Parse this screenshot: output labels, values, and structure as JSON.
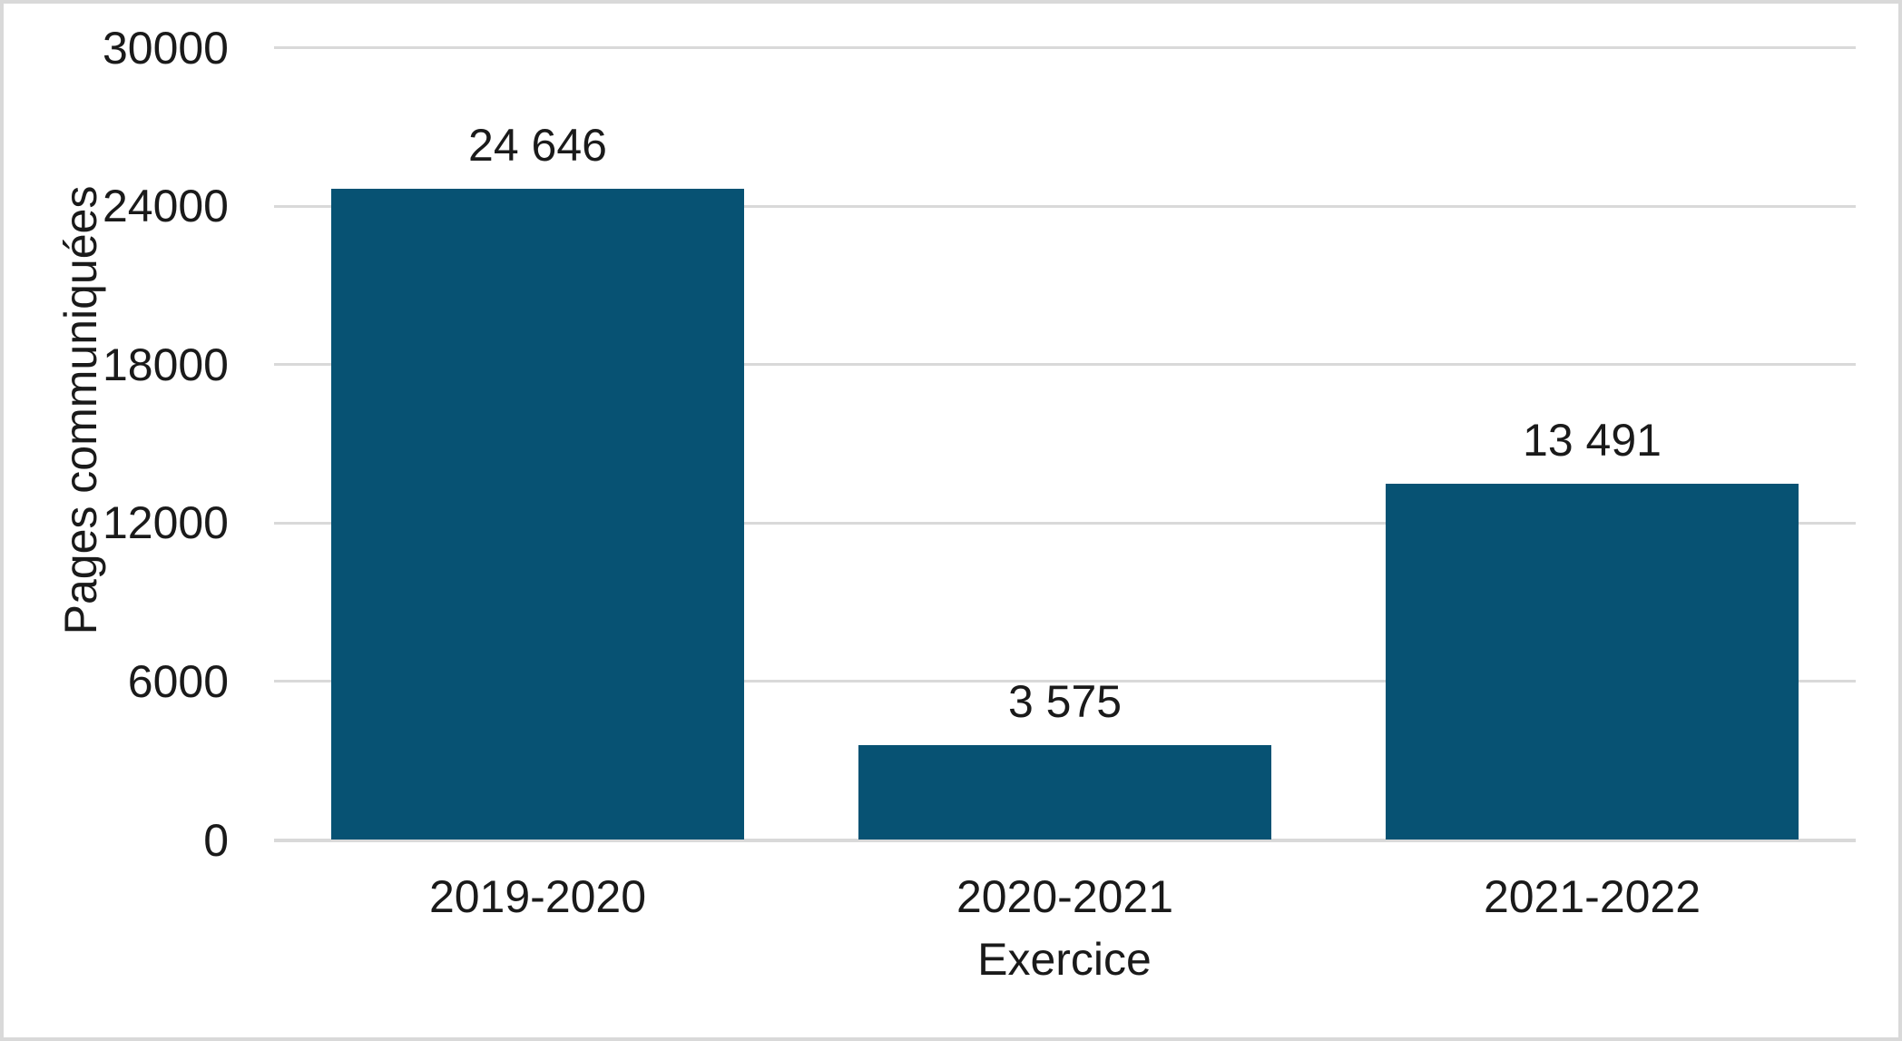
{
  "chart_data": {
    "type": "bar",
    "categories": [
      "2019-2020",
      "2020-2021",
      "2021-2022"
    ],
    "values": [
      24646,
      3575,
      13491
    ],
    "value_labels": [
      "24 646",
      "3 575",
      "13 491"
    ],
    "title": "",
    "xlabel": "Exercice",
    "ylabel": "Pages communiquées",
    "ylim": [
      0,
      30000
    ],
    "yticks": [
      0,
      6000,
      12000,
      18000,
      24000,
      30000
    ],
    "grid": "horizontal",
    "legend": "none",
    "colors": {
      "bar": "#075273",
      "gridline": "#D9D9D9",
      "axis_line": "#D9D9D9",
      "text": "#1A1A1A",
      "border": "#D9D9D9",
      "background": "#FFFFFF"
    }
  }
}
